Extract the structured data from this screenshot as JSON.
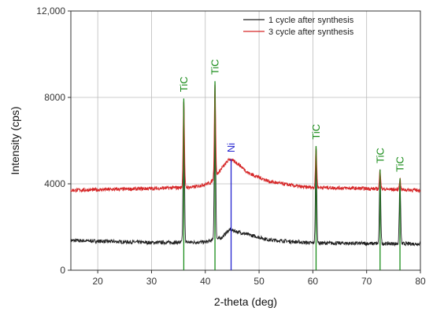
{
  "chart_data": {
    "type": "line",
    "xlabel": "2-theta (deg)",
    "ylabel": "Intensity (cps)",
    "xlim": [
      15,
      80
    ],
    "ylim": [
      0,
      12000
    ],
    "x_ticks": [
      20,
      30,
      40,
      50,
      60,
      70,
      80
    ],
    "x_tick_labels": [
      "20",
      "30",
      "40",
      "50",
      "60",
      "70",
      "80"
    ],
    "y_ticks": [
      0,
      4000,
      8000,
      12000
    ],
    "y_tick_labels": [
      "0",
      "4000",
      "8000",
      "12,000"
    ],
    "grid": true,
    "legend_position": "top-right",
    "series": [
      {
        "name": "1 cycle after synthesis",
        "color": "#222222",
        "baseline": [
          [
            15,
            1380
          ],
          [
            30,
            1280
          ],
          [
            40,
            1300
          ],
          [
            43,
            1500
          ],
          [
            44.5,
            1880
          ],
          [
            46,
            1780
          ],
          [
            48,
            1650
          ],
          [
            52,
            1400
          ],
          [
            60,
            1260
          ],
          [
            70,
            1240
          ],
          [
            80,
            1220
          ]
        ],
        "peaks": [
          {
            "x": 36.0,
            "y": 7900
          },
          {
            "x": 41.8,
            "y": 8700
          },
          {
            "x": 60.6,
            "y": 5700
          },
          {
            "x": 72.5,
            "y": 4600
          },
          {
            "x": 76.2,
            "y": 4200
          }
        ]
      },
      {
        "name": "3 cycle after synthesis",
        "color": "#d62728",
        "baseline": [
          [
            15,
            3700
          ],
          [
            30,
            3780
          ],
          [
            38,
            3850
          ],
          [
            41,
            4050
          ],
          [
            43,
            4700
          ],
          [
            44.5,
            5150
          ],
          [
            46,
            4950
          ],
          [
            48,
            4500
          ],
          [
            52,
            4100
          ],
          [
            58,
            3850
          ],
          [
            70,
            3780
          ],
          [
            80,
            3700
          ]
        ],
        "peaks": [
          {
            "x": 36.0,
            "y": 7950
          },
          {
            "x": 41.8,
            "y": 8750
          },
          {
            "x": 60.6,
            "y": 5750
          },
          {
            "x": 72.5,
            "y": 4650
          },
          {
            "x": 76.2,
            "y": 4250
          }
        ]
      }
    ],
    "peak_markers": [
      {
        "label": "TiC",
        "x": 36.0,
        "top": 7950,
        "color": "#1a8c1a",
        "label_y": 8250
      },
      {
        "label": "TiC",
        "x": 41.8,
        "top": 8750,
        "color": "#1a8c1a",
        "label_y": 9050
      },
      {
        "label": "Ni",
        "x": 44.8,
        "top": 5150,
        "color": "#2323d0",
        "label_y": 5450
      },
      {
        "label": "TiC",
        "x": 60.6,
        "top": 5750,
        "color": "#1a8c1a",
        "label_y": 6050
      },
      {
        "label": "TiC",
        "x": 72.5,
        "top": 4650,
        "color": "#1a8c1a",
        "label_y": 4950
      },
      {
        "label": "TiC",
        "x": 76.2,
        "top": 4250,
        "color": "#1a8c1a",
        "label_y": 4550
      }
    ]
  }
}
